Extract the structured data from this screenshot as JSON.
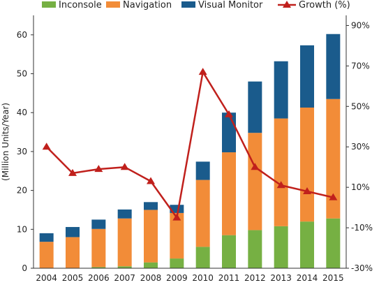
{
  "chart_data": {
    "type": "bar",
    "stacked": true,
    "categories": [
      "2004",
      "2005",
      "2006",
      "2007",
      "2008",
      "2009",
      "2010",
      "2011",
      "2012",
      "2013",
      "2014",
      "2015"
    ],
    "series": [
      {
        "name": "Inconsole",
        "color": "#76b043",
        "values": [
          0,
          0,
          0.3,
          0.5,
          1.5,
          2.5,
          5.5,
          8.5,
          9.8,
          10.8,
          12.0,
          12.8
        ]
      },
      {
        "name": "Navigation",
        "color": "#f28c38",
        "values": [
          6.8,
          8.0,
          9.8,
          12.3,
          13.5,
          11.7,
          17.2,
          21.3,
          25.0,
          27.7,
          29.3,
          30.7
        ]
      },
      {
        "name": "Visual Monitor",
        "color": "#1a5b8c",
        "values": [
          2.2,
          2.6,
          2.4,
          2.3,
          2.0,
          2.1,
          4.7,
          10.2,
          13.2,
          14.7,
          16.0,
          16.7
        ]
      }
    ],
    "line_series": {
      "name": "Growth (%)",
      "color": "#c0201c",
      "marker": "triangle",
      "axis": "right",
      "values": [
        30,
        17,
        19,
        20,
        13,
        -5,
        67,
        46,
        20,
        11,
        8,
        5
      ]
    },
    "ylabel": "(Million Units/Year)",
    "ylim": [
      0,
      65
    ],
    "yticks": [
      0,
      10,
      20,
      30,
      40,
      50,
      60
    ],
    "ylim_right": [
      -30,
      95
    ],
    "yticks_right": [
      -30,
      -10,
      10,
      30,
      50,
      70,
      90
    ],
    "ytick_right_labels": [
      "-30%",
      "-10%",
      "10%",
      "30%",
      "50%",
      "70%",
      "90%"
    ],
    "grid": false,
    "legend_position": "top"
  }
}
